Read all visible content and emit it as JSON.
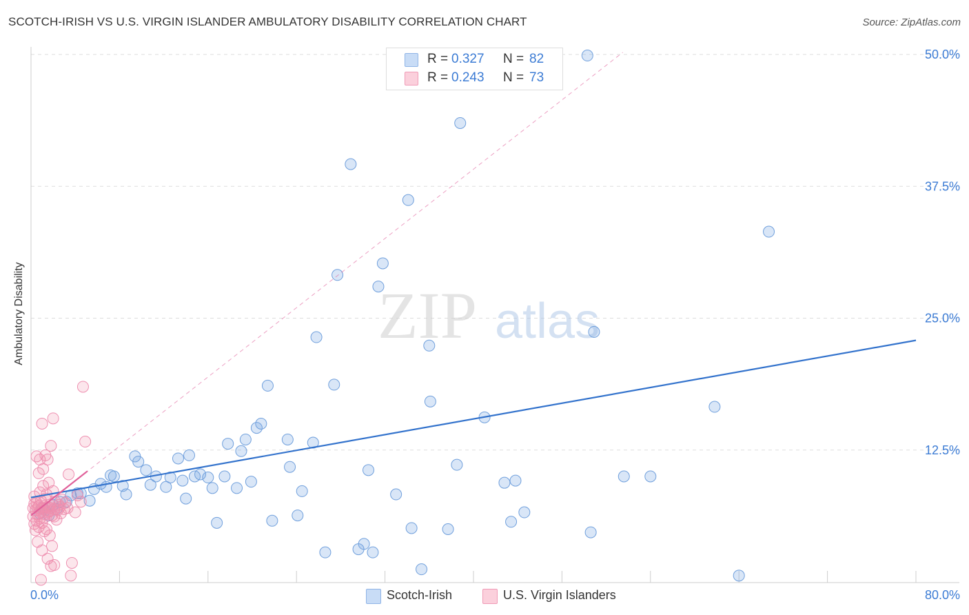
{
  "header": {
    "title": "SCOTCH-IRISH VS U.S. VIRGIN ISLANDER AMBULATORY DISABILITY CORRELATION CHART",
    "source": "Source: ZipAtlas.com"
  },
  "watermark": {
    "zip": "ZIP",
    "atlas": "atlas"
  },
  "legend": {
    "rows": [
      {
        "r_label": "R =",
        "r_value": "0.327",
        "n_label": "N =",
        "n_value": "82",
        "color": "#a8c8f0"
      },
      {
        "r_label": "R =",
        "r_value": "0.243",
        "n_label": "N =",
        "n_value": "73",
        "color": "#f7b6c8"
      }
    ]
  },
  "bottom_legend": [
    {
      "label": "Scotch-Irish",
      "color": "#a8c8f0"
    },
    {
      "label": "U.S. Virgin Islanders",
      "color": "#f7b6c8"
    }
  ],
  "colors": {
    "blue_point_fill": "rgba(120,165,225,0.28)",
    "blue_point_stroke": "#6f9fdc",
    "blue_line": "#3272cc",
    "pink_point_fill": "rgba(240,140,170,0.22)",
    "pink_point_stroke": "#ee8fb0",
    "pink_line": "#e0609a",
    "axis_text": "#3b7bd4",
    "grid": "#dddddd"
  },
  "chart_data": {
    "type": "scatter",
    "title": "SCOTCH-IRISH VS U.S. VIRGIN ISLANDER AMBULATORY DISABILITY CORRELATION CHART",
    "xlabel": "",
    "ylabel": "Ambulatory Disability",
    "xlim": [
      0,
      80
    ],
    "ylim": [
      0,
      50
    ],
    "x_tick_labels": [
      "0.0%",
      "80.0%"
    ],
    "y_ticks": [
      12.5,
      25.0,
      37.5,
      50.0
    ],
    "y_tick_labels": [
      "12.5%",
      "25.0%",
      "37.5%",
      "50.0%"
    ],
    "grid": true,
    "series": [
      {
        "name": "Scotch-Irish",
        "points": [
          [
            0.8,
            6.5
          ],
          [
            1.0,
            7.0
          ],
          [
            1.3,
            6.8
          ],
          [
            1.6,
            6.3
          ],
          [
            2.0,
            7.3
          ],
          [
            2.3,
            6.9
          ],
          [
            2.6,
            7.6
          ],
          [
            3.2,
            7.6
          ],
          [
            3.6,
            8.2
          ],
          [
            4.2,
            8.4
          ],
          [
            4.5,
            8.4
          ],
          [
            5.3,
            7.7
          ],
          [
            5.7,
            8.8
          ],
          [
            6.3,
            9.3
          ],
          [
            6.8,
            9.0
          ],
          [
            7.2,
            10.1
          ],
          [
            7.5,
            10.0
          ],
          [
            8.3,
            9.1
          ],
          [
            8.6,
            8.3
          ],
          [
            9.4,
            11.9
          ],
          [
            9.7,
            11.4
          ],
          [
            10.4,
            10.6
          ],
          [
            10.8,
            9.2
          ],
          [
            11.3,
            10.0
          ],
          [
            12.2,
            9.0
          ],
          [
            12.6,
            9.9
          ],
          [
            13.3,
            11.7
          ],
          [
            13.7,
            9.6
          ],
          [
            14.0,
            7.9
          ],
          [
            14.3,
            12.0
          ],
          [
            14.8,
            10.0
          ],
          [
            15.3,
            10.2
          ],
          [
            16.0,
            9.9
          ],
          [
            16.4,
            8.9
          ],
          [
            16.8,
            5.6
          ],
          [
            17.5,
            10.0
          ],
          [
            17.8,
            13.1
          ],
          [
            18.6,
            8.9
          ],
          [
            19.0,
            12.4
          ],
          [
            19.4,
            13.5
          ],
          [
            19.9,
            9.5
          ],
          [
            20.4,
            14.6
          ],
          [
            20.8,
            15.0
          ],
          [
            21.4,
            18.6
          ],
          [
            21.8,
            5.8
          ],
          [
            23.2,
            13.5
          ],
          [
            23.4,
            10.9
          ],
          [
            24.1,
            6.3
          ],
          [
            24.5,
            8.6
          ],
          [
            25.5,
            13.2
          ],
          [
            25.8,
            23.2
          ],
          [
            26.6,
            2.8
          ],
          [
            27.4,
            18.7
          ],
          [
            27.7,
            29.1
          ],
          [
            28.9,
            39.6
          ],
          [
            29.6,
            3.1
          ],
          [
            30.1,
            3.6
          ],
          [
            30.5,
            10.6
          ],
          [
            30.9,
            2.8
          ],
          [
            31.4,
            28.0
          ],
          [
            31.8,
            30.2
          ],
          [
            33.0,
            8.3
          ],
          [
            34.1,
            36.2
          ],
          [
            34.4,
            5.1
          ],
          [
            35.3,
            1.2
          ],
          [
            36.0,
            22.4
          ],
          [
            36.1,
            17.1
          ],
          [
            37.7,
            5.0
          ],
          [
            38.5,
            11.1
          ],
          [
            38.8,
            43.5
          ],
          [
            41.0,
            15.6
          ],
          [
            42.8,
            9.4
          ],
          [
            43.4,
            5.7
          ],
          [
            43.8,
            9.6
          ],
          [
            44.6,
            6.6
          ],
          [
            50.3,
            49.9
          ],
          [
            50.6,
            4.7
          ],
          [
            50.9,
            23.7
          ],
          [
            53.6,
            10.0
          ],
          [
            56.0,
            10.0
          ],
          [
            61.8,
            16.6
          ],
          [
            64.0,
            0.6
          ],
          [
            66.7,
            33.2
          ]
        ]
      },
      {
        "name": "U.S. Virgin Islanders",
        "points": [
          [
            0.2,
            7.0
          ],
          [
            0.2,
            6.2
          ],
          [
            0.3,
            5.5
          ],
          [
            0.3,
            8.1
          ],
          [
            0.4,
            6.8
          ],
          [
            0.4,
            4.9
          ],
          [
            0.5,
            7.5
          ],
          [
            0.5,
            5.8
          ],
          [
            0.5,
            11.9
          ],
          [
            0.6,
            6.4
          ],
          [
            0.6,
            3.8
          ],
          [
            0.7,
            10.3
          ],
          [
            0.7,
            7.2
          ],
          [
            0.7,
            5.2
          ],
          [
            0.8,
            11.6
          ],
          [
            0.8,
            6.0
          ],
          [
            0.8,
            8.5
          ],
          [
            0.9,
            7.7
          ],
          [
            0.9,
            6.6
          ],
          [
            0.9,
            0.2
          ],
          [
            1.0,
            15.0
          ],
          [
            1.0,
            5.6
          ],
          [
            1.0,
            3.0
          ],
          [
            1.1,
            7.0
          ],
          [
            1.1,
            10.7
          ],
          [
            1.1,
            9.1
          ],
          [
            1.2,
            6.1
          ],
          [
            1.2,
            4.8
          ],
          [
            1.3,
            12.0
          ],
          [
            1.3,
            7.9
          ],
          [
            1.3,
            6.4
          ],
          [
            1.4,
            8.3
          ],
          [
            1.4,
            5.0
          ],
          [
            1.5,
            7.1
          ],
          [
            1.5,
            11.6
          ],
          [
            1.5,
            2.2
          ],
          [
            1.6,
            9.4
          ],
          [
            1.6,
            6.7
          ],
          [
            1.7,
            4.4
          ],
          [
            1.7,
            7.3
          ],
          [
            1.8,
            12.9
          ],
          [
            1.8,
            1.5
          ],
          [
            1.9,
            6.3
          ],
          [
            1.9,
            3.4
          ],
          [
            2.0,
            15.5
          ],
          [
            2.0,
            8.6
          ],
          [
            2.1,
            6.9
          ],
          [
            2.1,
            1.6
          ],
          [
            2.2,
            7.6
          ],
          [
            2.3,
            5.9
          ],
          [
            2.4,
            6.8
          ],
          [
            2.5,
            7.3
          ],
          [
            2.6,
            7.1
          ],
          [
            2.7,
            6.5
          ],
          [
            2.8,
            7.8
          ],
          [
            3.0,
            6.9
          ],
          [
            3.1,
            7.5
          ],
          [
            3.3,
            7.0
          ],
          [
            3.4,
            10.2
          ],
          [
            3.6,
            0.6
          ],
          [
            3.7,
            1.8
          ],
          [
            4.0,
            6.6
          ],
          [
            4.2,
            8.2
          ],
          [
            4.5,
            7.6
          ],
          [
            4.7,
            18.5
          ],
          [
            4.9,
            13.3
          ],
          [
            0.3,
            7.4
          ],
          [
            0.6,
            7.0
          ],
          [
            0.9,
            6.9
          ],
          [
            1.2,
            7.2
          ],
          [
            1.5,
            6.6
          ],
          [
            1.8,
            7.0
          ],
          [
            2.1,
            6.2
          ]
        ]
      }
    ],
    "trend_lines": [
      {
        "series": "Scotch-Irish",
        "style": "solid",
        "from": [
          0,
          8.0
        ],
        "to": [
          80,
          22.9
        ]
      },
      {
        "series": "U.S. Virgin Islanders",
        "style": "solid",
        "from": [
          0,
          6.3
        ],
        "to": [
          5.1,
          10.5
        ]
      },
      {
        "series": "U.S. Virgin Islanders",
        "style": "dashed",
        "from": [
          0,
          6.3
        ],
        "to": [
          53.5,
          50.2
        ]
      }
    ]
  }
}
